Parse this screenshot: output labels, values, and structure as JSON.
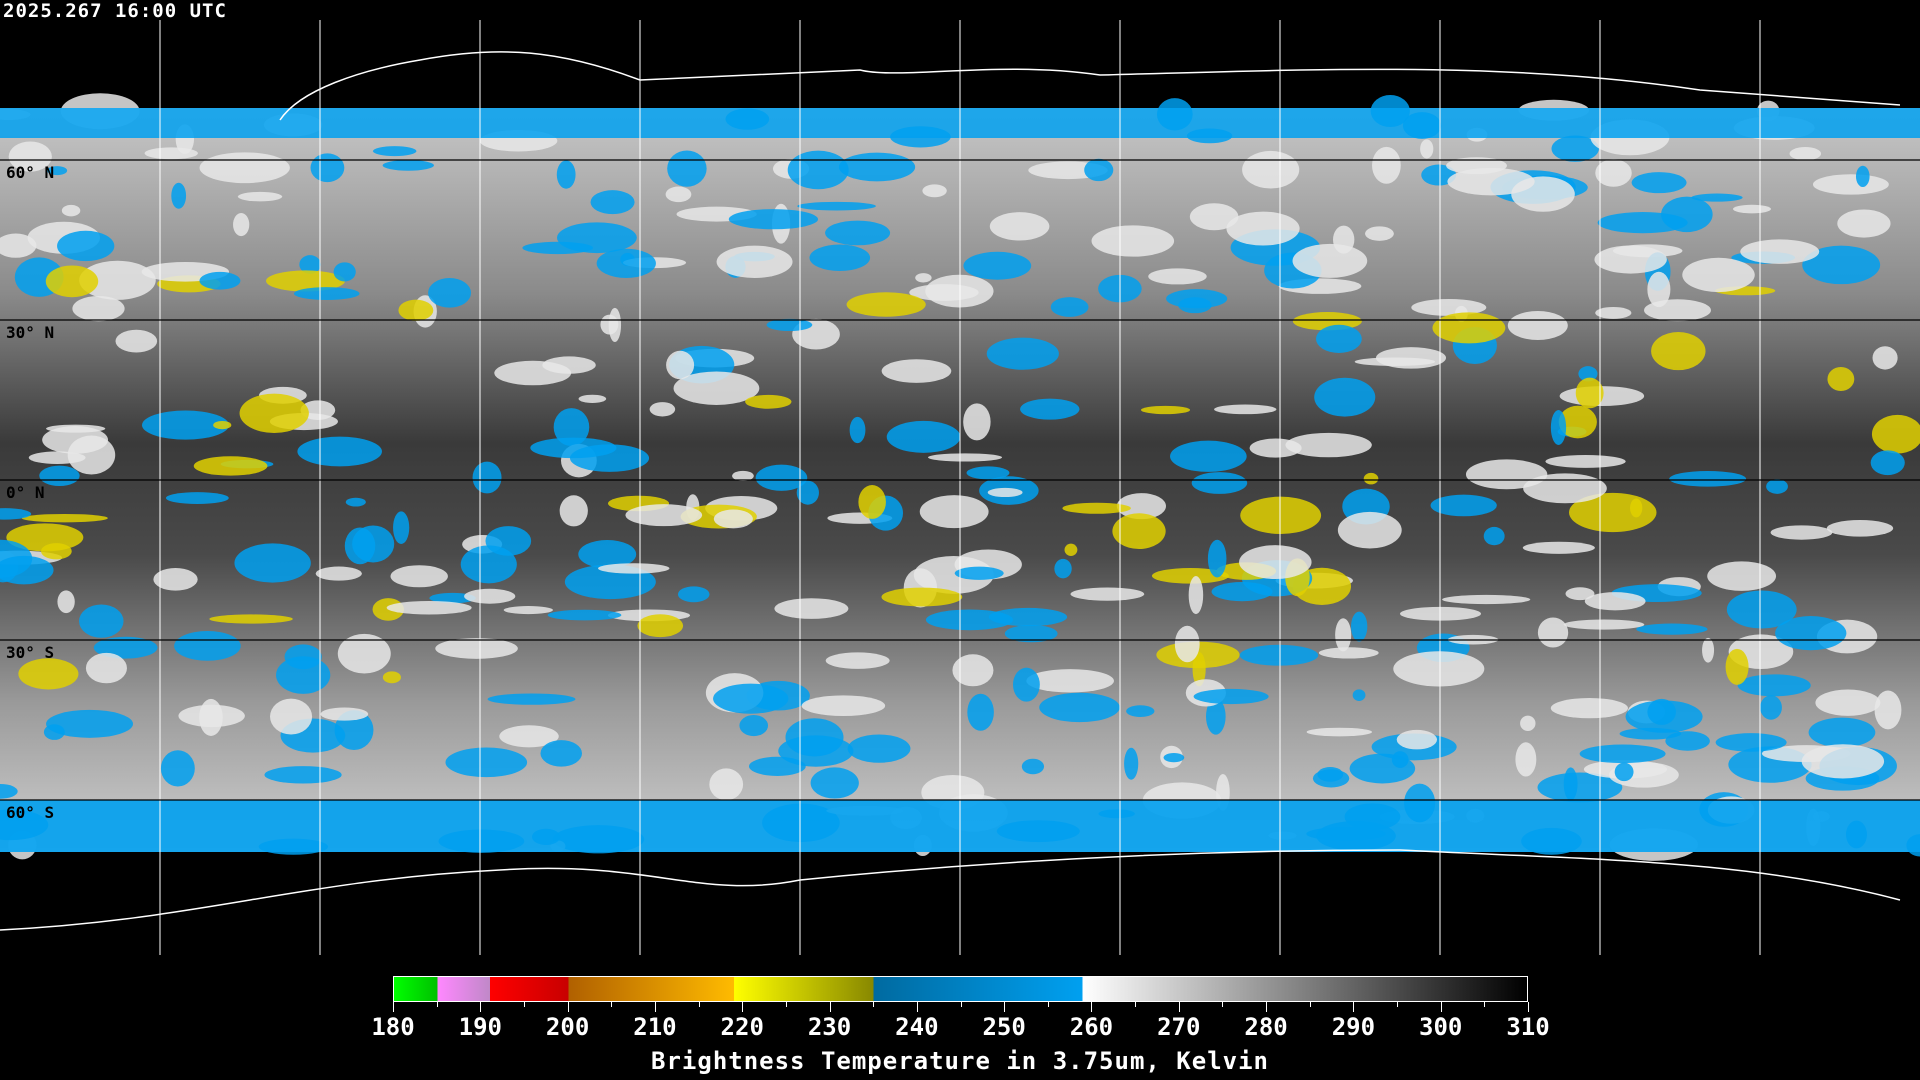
{
  "header": {
    "timestamp": "2025.267 16:00 UTC"
  },
  "map": {
    "latitude_labels": [
      {
        "lat": 60,
        "text": "60° N"
      },
      {
        "lat": 30,
        "text": "30° N"
      },
      {
        "lat": 0,
        "text": "0° N"
      },
      {
        "lat": -30,
        "text": "30° S"
      },
      {
        "lat": -60,
        "text": "60° S"
      }
    ],
    "gridline_color": "#000000"
  },
  "colorbar": {
    "min": 180,
    "max": 310,
    "tick_labels": [
      "180",
      "190",
      "200",
      "210",
      "220",
      "230",
      "240",
      "250",
      "260",
      "270",
      "280",
      "290",
      "300",
      "310"
    ],
    "segments": [
      {
        "from": 180,
        "to": 185,
        "start": "#00ff00",
        "end": "#00c000"
      },
      {
        "from": 185,
        "to": 191,
        "start": "#ff88ff",
        "end": "#c088c8"
      },
      {
        "from": 191,
        "to": 200,
        "start": "#ff0000",
        "end": "#c80000"
      },
      {
        "from": 200,
        "to": 219,
        "start": "#b06000",
        "end": "#ffbb00"
      },
      {
        "from": 219,
        "to": 235,
        "start": "#ffff00",
        "end": "#888800"
      },
      {
        "from": 235,
        "to": 259,
        "start": "#006aa0",
        "end": "#00a0f0"
      },
      {
        "from": 259,
        "to": 310,
        "start": "#ffffff",
        "end": "#000000"
      }
    ],
    "title": "Brightness Temperature in 3.75um, Kelvin"
  }
}
